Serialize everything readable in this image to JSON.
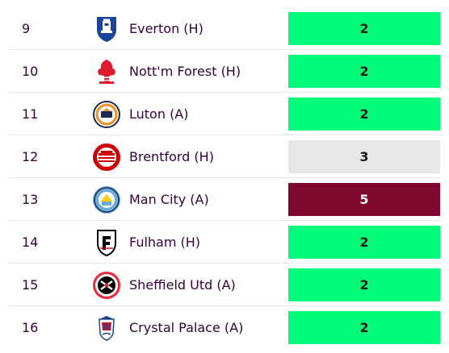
{
  "fixtures": [
    {
      "gameweek": "9",
      "opponent": "Everton (H)",
      "difficulty": "2",
      "crest": "everton-crest-icon",
      "colors": {
        "primary": "#1b449c",
        "secondary": "#ffffff"
      }
    },
    {
      "gameweek": "10",
      "opponent": "Nott'm Forest (H)",
      "difficulty": "2",
      "crest": "nottm-forest-crest-icon",
      "colors": {
        "primary": "#dd1b2d",
        "secondary": "#ffffff"
      }
    },
    {
      "gameweek": "11",
      "opponent": "Luton (A)",
      "difficulty": "2",
      "crest": "luton-crest-icon",
      "colors": {
        "primary": "#f78f1e",
        "secondary": "#1d2a54"
      }
    },
    {
      "gameweek": "12",
      "opponent": "Brentford (H)",
      "difficulty": "3",
      "crest": "brentford-crest-icon",
      "colors": {
        "primary": "#d20000",
        "secondary": "#ffffff"
      }
    },
    {
      "gameweek": "13",
      "opponent": "Man City (A)",
      "difficulty": "5",
      "crest": "man-city-crest-icon",
      "colors": {
        "primary": "#6cabdd",
        "secondary": "#1c2c5b"
      }
    },
    {
      "gameweek": "14",
      "opponent": "Fulham (H)",
      "difficulty": "2",
      "crest": "fulham-crest-icon",
      "colors": {
        "primary": "#000000",
        "secondary": "#ffffff"
      }
    },
    {
      "gameweek": "15",
      "opponent": "Sheffield Utd (A)",
      "difficulty": "2",
      "crest": "sheffield-utd-crest-icon",
      "colors": {
        "primary": "#ee2737",
        "secondary": "#000000"
      }
    },
    {
      "gameweek": "16",
      "opponent": "Crystal Palace (A)",
      "difficulty": "2",
      "crest": "crystal-palace-crest-icon",
      "colors": {
        "primary": "#1b458f",
        "secondary": "#c4122e"
      }
    }
  ],
  "difficulty_colors": {
    "2": "#01fc7a",
    "3": "#e7e7e7",
    "5": "#80072d"
  }
}
